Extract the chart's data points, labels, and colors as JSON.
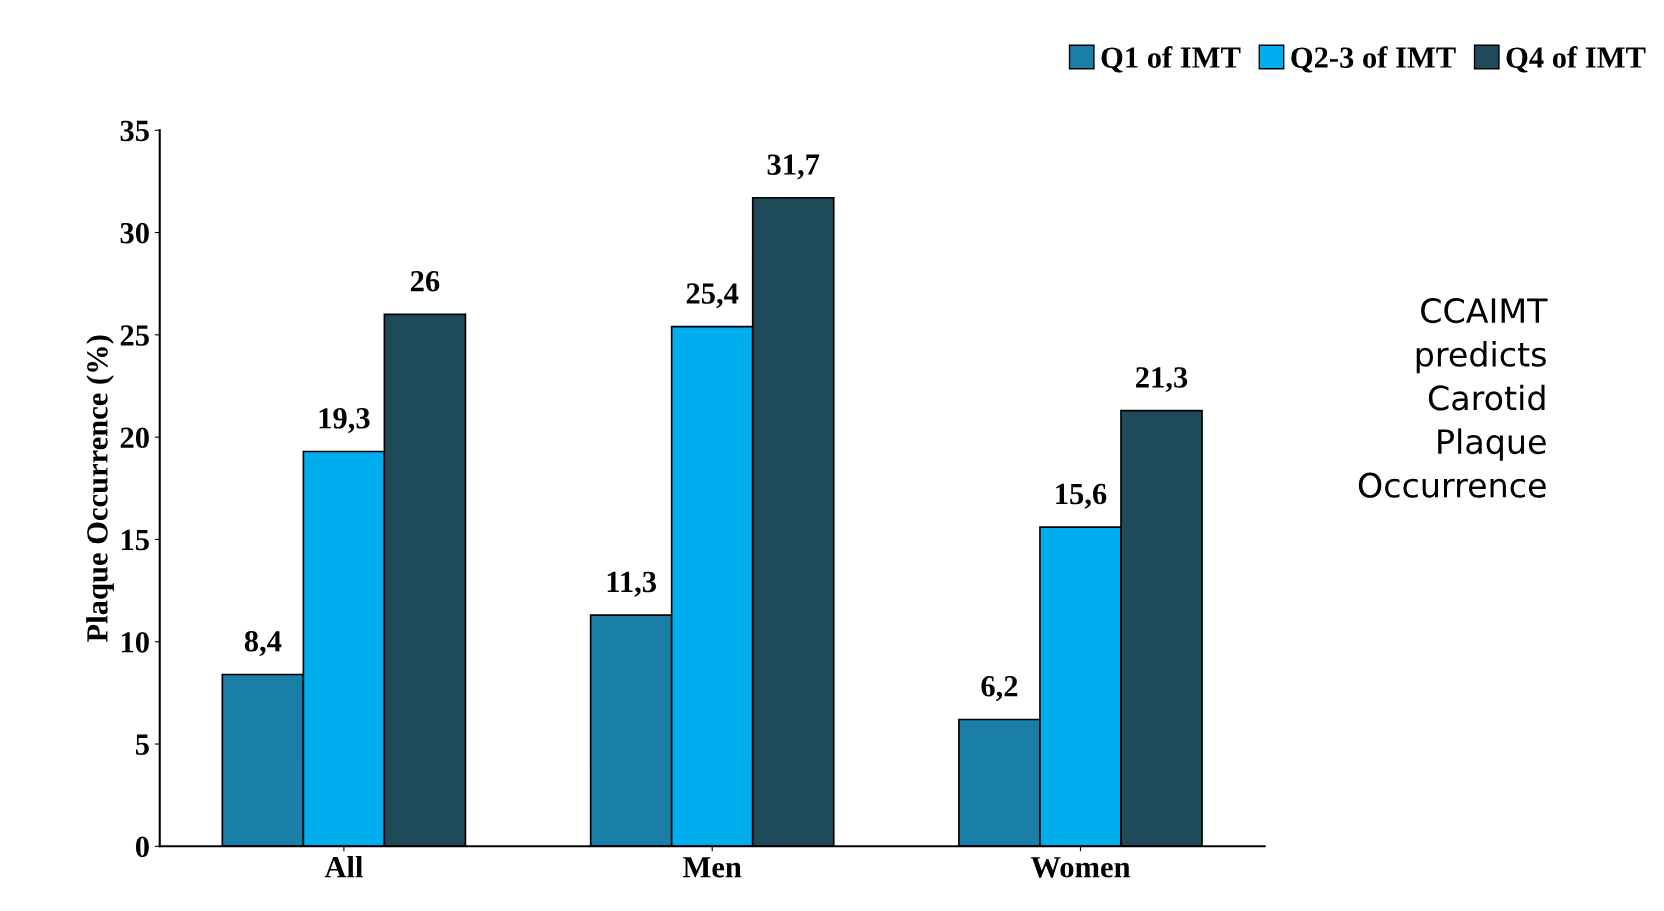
{
  "chart_data": {
    "type": "bar",
    "ylabel": "Plaque Occurrence (%)",
    "categories": [
      "All",
      "Men",
      "Women"
    ],
    "series": [
      {
        "name": "Q1 of IMT",
        "color": "#1a7fa6",
        "values": [
          8.4,
          11.3,
          6.2
        ],
        "value_labels": [
          "8,4",
          "11,3",
          "6,2"
        ]
      },
      {
        "name": "Q2-3 of IMT",
        "color": "#00aeef",
        "values": [
          19.3,
          25.4,
          15.6
        ],
        "value_labels": [
          "19,3",
          "25,4",
          "15,6"
        ]
      },
      {
        "name": "Q4 of IMT",
        "color": "#1f4a5a",
        "values": [
          26,
          31.7,
          21.3
        ],
        "value_labels": [
          "26",
          "31,7",
          "21,3"
        ]
      }
    ],
    "ylim": [
      0,
      35
    ],
    "yticks": [
      0,
      5,
      10,
      15,
      20,
      25,
      30,
      35
    ],
    "grid": false,
    "legend": "top right",
    "annotations": [
      "CCAIMT\npredicts\nCarotid\nPlaque\nOccurrence"
    ]
  }
}
